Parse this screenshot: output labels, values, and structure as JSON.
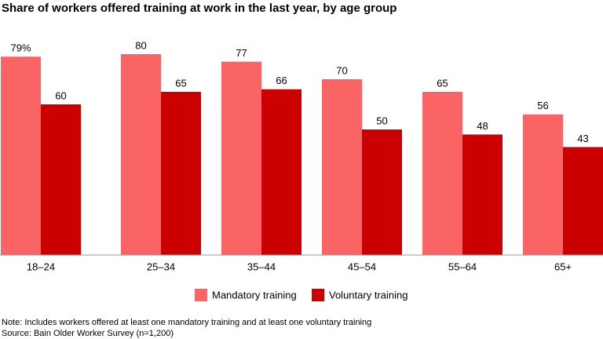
{
  "chart_data": {
    "type": "bar",
    "title": "Share of workers offered training at work in the last year, by age group",
    "categories": [
      "18–24",
      "25–34",
      "35–44",
      "45–54",
      "55–64",
      "65+"
    ],
    "series": [
      {
        "name": "Mandatory training",
        "color": "#fa6464",
        "values": [
          79,
          80,
          77,
          70,
          65,
          56
        ],
        "value_labels": [
          "79%",
          "80",
          "77",
          "70",
          "65",
          "56"
        ]
      },
      {
        "name": "Voluntary training",
        "color": "#cc0000",
        "values": [
          60,
          65,
          66,
          50,
          48,
          43
        ]
      }
    ],
    "ylim": [
      0,
      100
    ],
    "note": "Note: Includes workers offered at least one mandatory training and at least one voluntary training",
    "source": "Source: Bain Older Worker Survey (n=1,200)"
  }
}
